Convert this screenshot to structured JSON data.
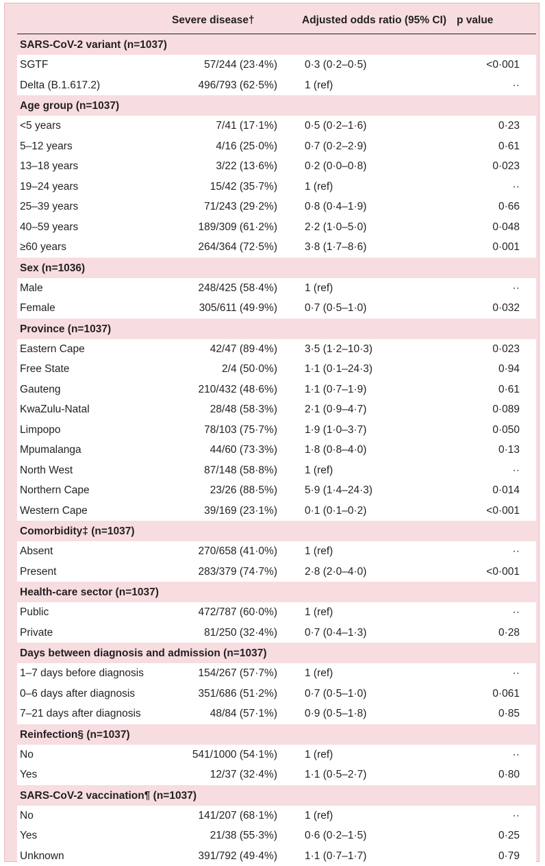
{
  "columns": [
    "",
    "Severe disease†",
    "Adjusted odds ratio (95% CI)",
    "p value"
  ],
  "sections": [
    {
      "label": "SARS-CoV-2 variant (n=1037)",
      "rows": [
        [
          "SGTF",
          "57/244 (23·4%)",
          "0·3 (0·2–0·5)",
          "<0·001"
        ],
        [
          "Delta (B.1.617.2)",
          "496/793 (62·5%)",
          "1 (ref)",
          "··"
        ]
      ]
    },
    {
      "label": "Age group (n=1037)",
      "rows": [
        [
          "<5 years",
          "7/41 (17·1%)",
          "0·5 (0·2–1·6)",
          "0·23"
        ],
        [
          "5–12 years",
          "4/16 (25·0%)",
          "0·7 (0·2–2·9)",
          "0·61"
        ],
        [
          "13–18 years",
          "3/22 (13·6%)",
          "0·2 (0·0–0·8)",
          "0·023"
        ],
        [
          "19–24 years",
          "15/42 (35·7%)",
          "1 (ref)",
          "··"
        ],
        [
          "25–39 years",
          "71/243 (29·2%)",
          "0·8 (0·4–1·9)",
          "0·66"
        ],
        [
          "40–59 years",
          "189/309 (61·2%)",
          "2·2 (1·0–5·0)",
          "0·048"
        ],
        [
          "≥60 years",
          "264/364 (72·5%)",
          "3·8 (1·7–8·6)",
          "0·001"
        ]
      ]
    },
    {
      "label": "Sex (n=1036)",
      "rows": [
        [
          "Male",
          "248/425 (58·4%)",
          "1 (ref)",
          "··"
        ],
        [
          "Female",
          "305/611 (49·9%)",
          "0·7 (0·5–1·0)",
          "0·032"
        ]
      ]
    },
    {
      "label": "Province (n=1037)",
      "rows": [
        [
          "Eastern Cape",
          "42/47 (89·4%)",
          "3·5 (1·2–10·3)",
          "0·023"
        ],
        [
          "Free State",
          "2/4 (50·0%)",
          "1·1 (0·1–24·3)",
          "0·94"
        ],
        [
          "Gauteng",
          "210/432 (48·6%)",
          "1·1 (0·7–1·9)",
          "0·61"
        ],
        [
          "KwaZulu-Natal",
          "28/48 (58·3%)",
          "2·1 (0·9–4·7)",
          "0·089"
        ],
        [
          "Limpopo",
          "78/103 (75·7%)",
          "1·9 (1·0–3·7)",
          "0·050"
        ],
        [
          "Mpumalanga",
          "44/60 (73·3%)",
          "1·8 (0·8–4·0)",
          "0·13"
        ],
        [
          "North West",
          "87/148 (58·8%)",
          "1 (ref)",
          "··"
        ],
        [
          "Northern Cape",
          "23/26 (88·5%)",
          "5·9 (1·4–24·3)",
          "0·014"
        ],
        [
          "Western Cape",
          "39/169 (23·1%)",
          "0·1 (0·1–0·2)",
          "<0·001"
        ]
      ]
    },
    {
      "label": "Comorbidity‡ (n=1037)",
      "rows": [
        [
          "Absent",
          "270/658 (41·0%)",
          "1 (ref)",
          "··"
        ],
        [
          "Present",
          "283/379 (74·7%)",
          "2·8 (2·0–4·0)",
          "<0·001"
        ]
      ]
    },
    {
      "label": "Health-care sector (n=1037)",
      "rows": [
        [
          "Public",
          "472/787 (60·0%)",
          "1 (ref)",
          "··"
        ],
        [
          "Private",
          "81/250 (32·4%)",
          "0·7 (0·4–1·3)",
          "0·28"
        ]
      ]
    },
    {
      "label": "Days between diagnosis and admission (n=1037)",
      "rows": [
        [
          "1–7 days before diagnosis",
          "154/267 (57·7%)",
          "1 (ref)",
          "··"
        ],
        [
          "0–6 days after diagnosis",
          "351/686 (51·2%)",
          "0·7 (0·5–1·0)",
          "0·061"
        ],
        [
          "7–21 days after diagnosis",
          "48/84 (57·1%)",
          "0·9 (0·5–1·8)",
          "0·85"
        ]
      ]
    },
    {
      "label": "Reinfection§ (n=1037)",
      "rows": [
        [
          "No",
          "541/1000 (54·1%)",
          "1 (ref)",
          "··"
        ],
        [
          "Yes",
          "12/37 (32·4%)",
          "1·1 (0·5–2·7)",
          "0·80"
        ]
      ]
    },
    {
      "label": "SARS-CoV-2 vaccination¶ (n=1037)",
      "rows": [
        [
          "No",
          "141/207 (68·1%)",
          "1 (ref)",
          "··"
        ],
        [
          "Yes",
          "21/38 (55·3%)",
          "0·6 (0·2–1·5)",
          "0·25"
        ],
        [
          "Unknown",
          "391/792 (49·4%)",
          "1·1 (0·7–1·7)",
          "0·79"
        ]
      ]
    }
  ]
}
